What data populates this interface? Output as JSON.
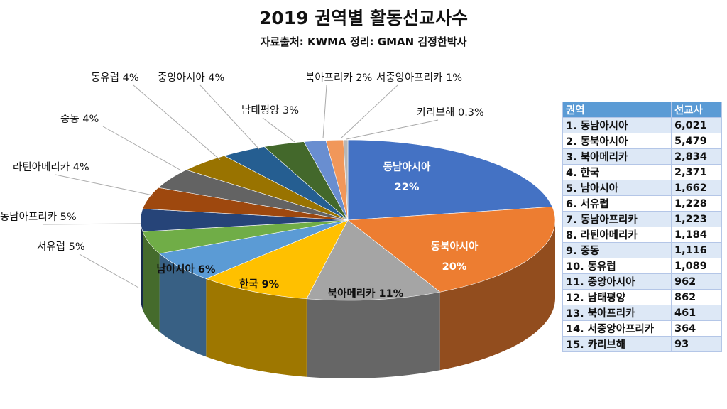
{
  "chart_data": {
    "type": "pie",
    "title": "2019 권역별 활동선교사수",
    "subtitle": "자료출처: KWMA  정리: GMAN 김정한박사",
    "slices": [
      {
        "label": "동남아시아",
        "value": 6021,
        "pct": "22%",
        "color": "#4472C4"
      },
      {
        "label": "동북아시아",
        "value": 5479,
        "pct": "20%",
        "color": "#ED7D31"
      },
      {
        "label": "북아메리카",
        "value": 2834,
        "pct": "11%",
        "color": "#A5A5A5"
      },
      {
        "label": "한국",
        "value": 2371,
        "pct": "9%",
        "color": "#FFC000"
      },
      {
        "label": "남아시아",
        "value": 1662,
        "pct": "6%",
        "color": "#5B9BD5"
      },
      {
        "label": "서유럽",
        "value": 1228,
        "pct": "5%",
        "color": "#70AD47"
      },
      {
        "label": "동남아프리카",
        "value": 1223,
        "pct": "5%",
        "color": "#264478"
      },
      {
        "label": "라틴아메리카",
        "value": 1184,
        "pct": "4%",
        "color": "#9E480E"
      },
      {
        "label": "중동",
        "value": 1116,
        "pct": "4%",
        "color": "#636363"
      },
      {
        "label": "동유럽",
        "value": 1089,
        "pct": "4%",
        "color": "#997300"
      },
      {
        "label": "중앙아시아",
        "value": 962,
        "pct": "4%",
        "color": "#255E91"
      },
      {
        "label": "남태평양",
        "value": 862,
        "pct": "3%",
        "color": "#43682B"
      },
      {
        "label": "북아프리카",
        "value": 461,
        "pct": "2%",
        "color": "#698ED0"
      },
      {
        "label": "서중앙아프리카",
        "value": 364,
        "pct": "1%",
        "color": "#F1975A"
      },
      {
        "label": "카리브해",
        "value": 93,
        "pct": "0.3%",
        "color": "#B7B7B7"
      }
    ]
  },
  "table": {
    "headers": [
      "권역",
      "선교사"
    ],
    "rows": [
      [
        "1. 동남아시아",
        "6,021"
      ],
      [
        "2. 동북아시아",
        "5,479"
      ],
      [
        "3. 북아메리카",
        "2,834"
      ],
      [
        "4. 한국",
        "2,371"
      ],
      [
        "5. 남아시아",
        "1,662"
      ],
      [
        "6. 서유럽",
        "1,228"
      ],
      [
        "7. 동남아프리카",
        "1,223"
      ],
      [
        "8. 라틴아메리카",
        "1,184"
      ],
      [
        "9. 중동",
        "1,116"
      ],
      [
        "10. 동유럽",
        "1,089"
      ],
      [
        "11. 중앙아시아",
        "962"
      ],
      [
        "12. 남태평양",
        "862"
      ],
      [
        "13. 북아프리카",
        "461"
      ],
      [
        "14. 서중앙아프리카",
        "364"
      ],
      [
        "15. 카리브해",
        "93"
      ]
    ]
  }
}
